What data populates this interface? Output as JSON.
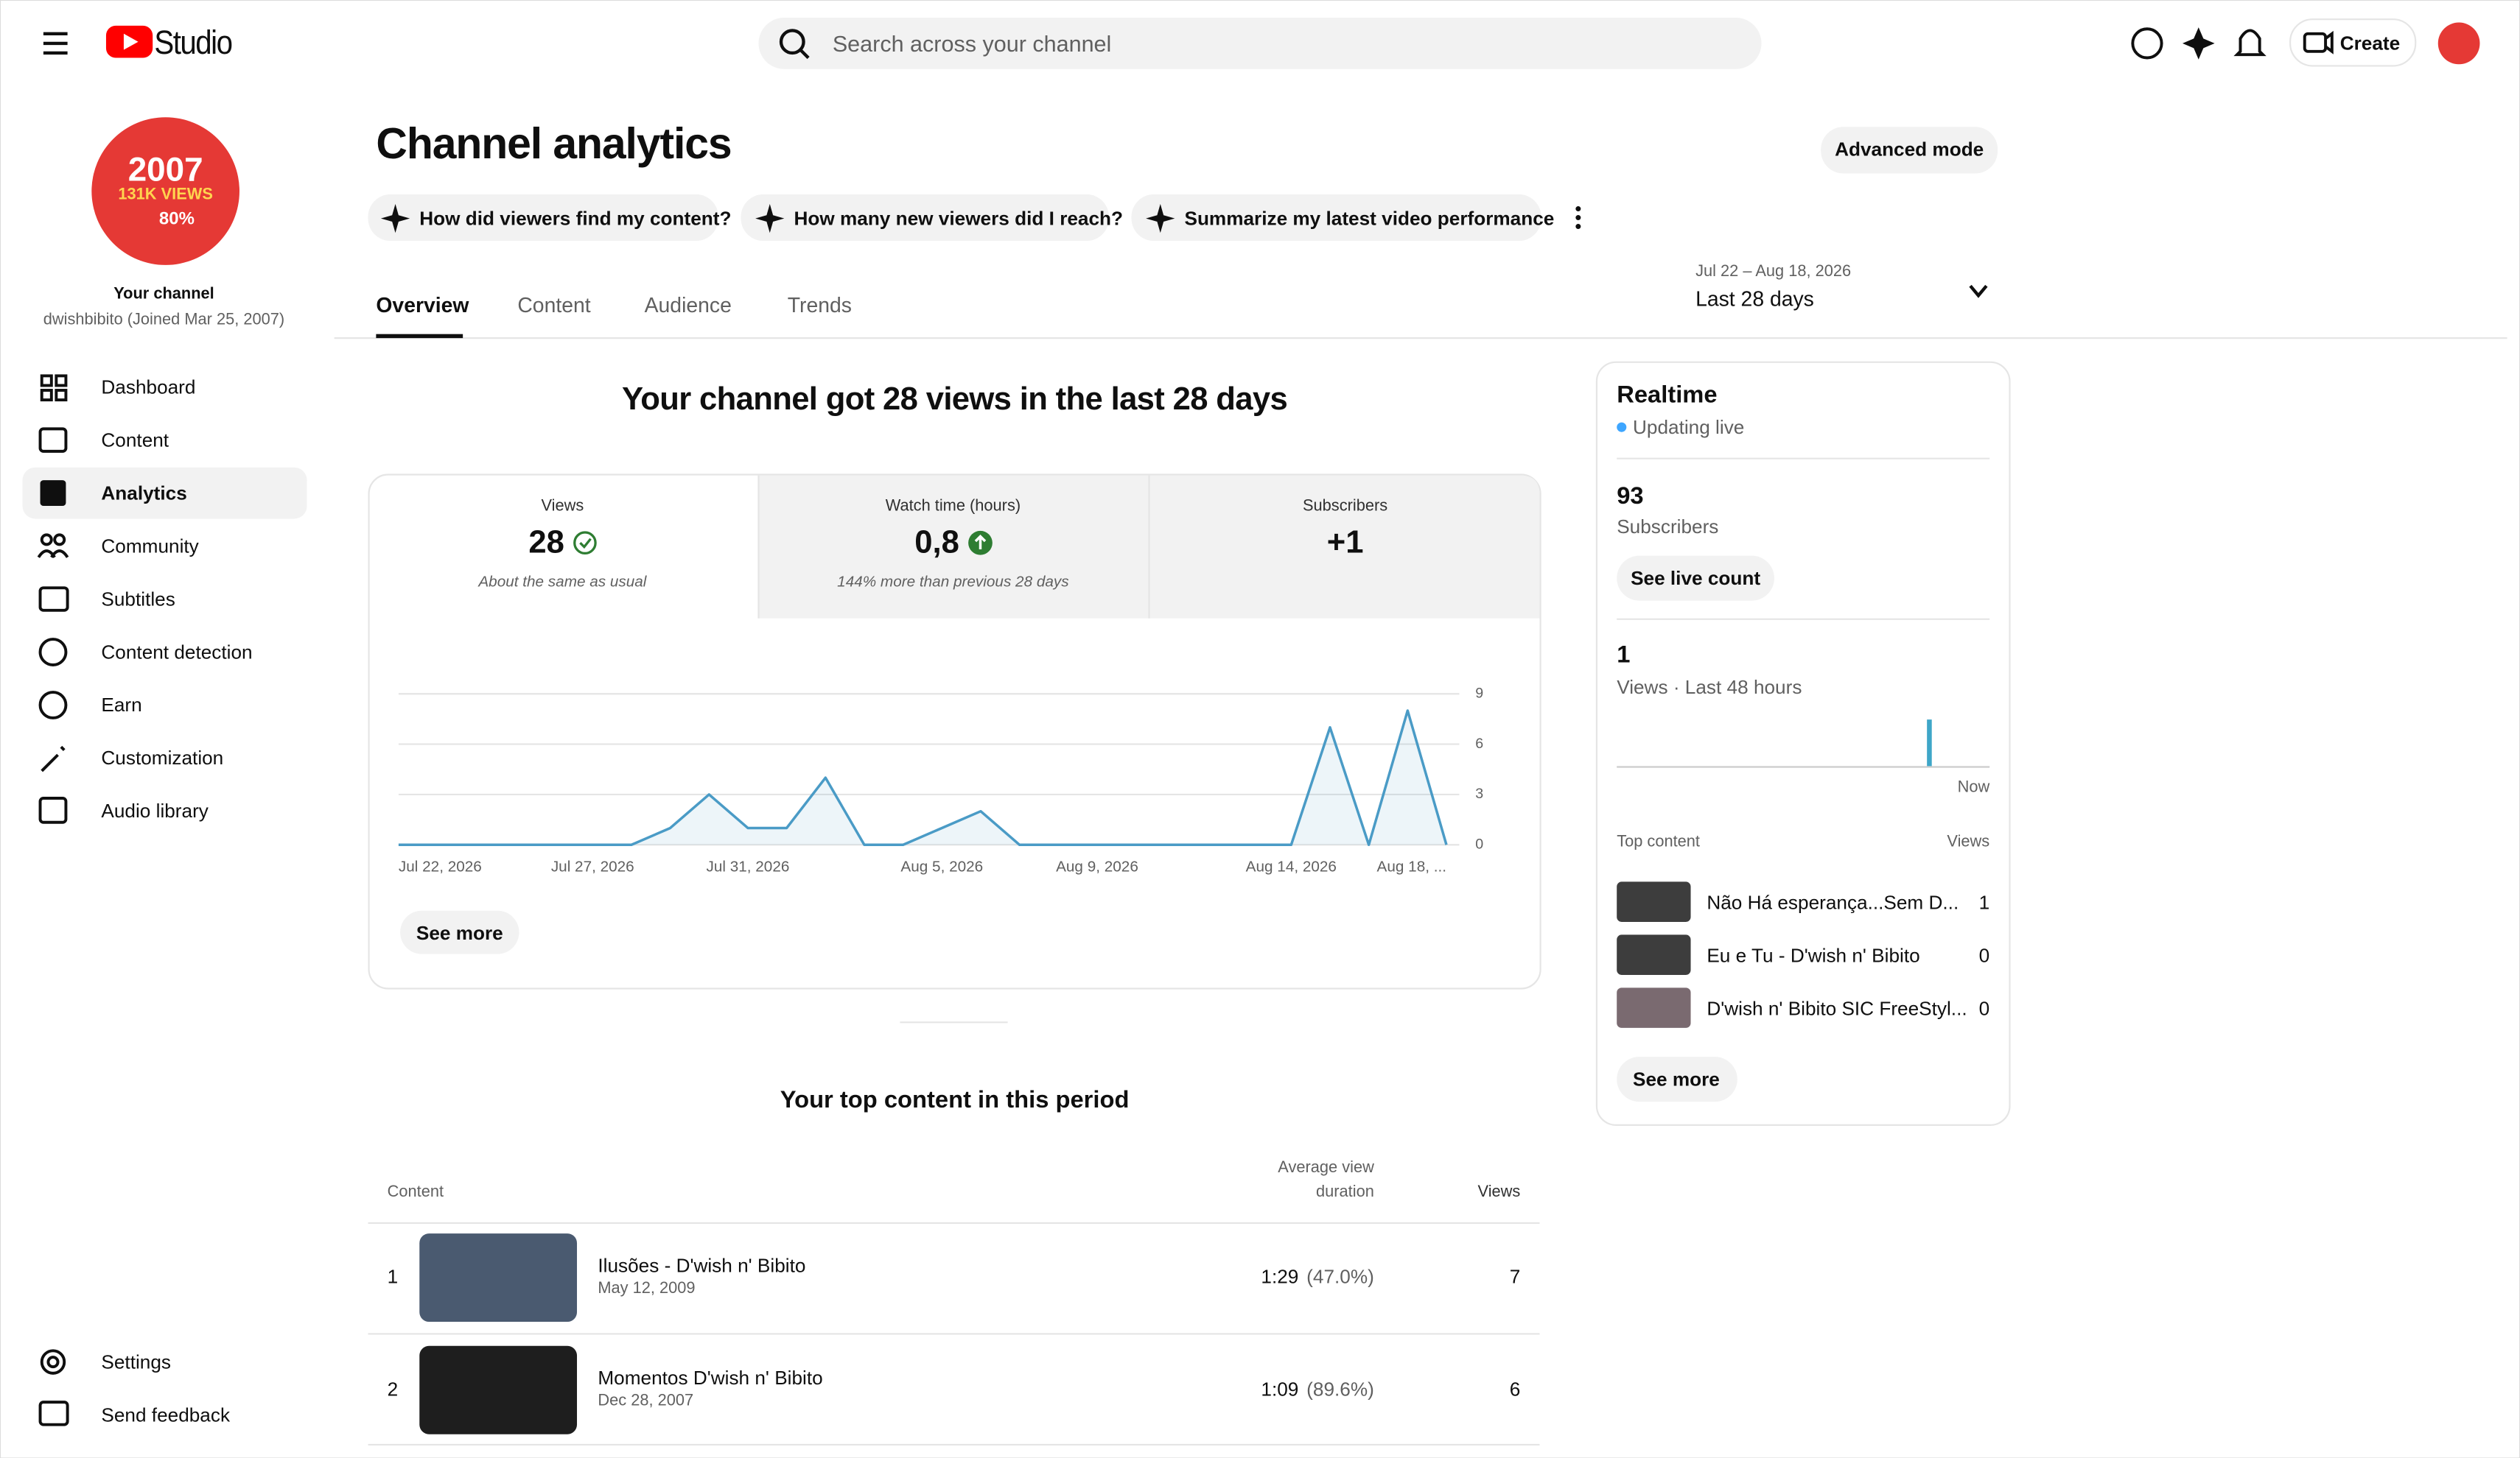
{
  "header": {
    "logo": "Studio",
    "search_placeholder": "Search across your channel",
    "create": "Create"
  },
  "sidebar": {
    "avatar": {
      "line1": "2007",
      "line2": "131K VIEWS",
      "line3": "80%"
    },
    "channel_label": "Your channel",
    "channel_info": "dwishbibito (Joined Mar 25, 2007)",
    "nav": [
      "Dashboard",
      "Content",
      "Analytics",
      "Community",
      "Subtitles",
      "Content detection",
      "Earn",
      "Customization",
      "Audio library"
    ],
    "bottom": [
      "Settings",
      "Send feedback"
    ]
  },
  "main": {
    "title": "Channel analytics",
    "advanced": "Advanced mode",
    "prompts": [
      "How did viewers find my content?",
      "How many new viewers did I reach?",
      "Summarize my latest video performance"
    ],
    "tabs": [
      "Overview",
      "Content",
      "Audience",
      "Trends"
    ],
    "date_range": "Jul 22 – Aug 18, 2026",
    "period": "Last 28 days",
    "headline": "Your channel got 28 views in the last 28 days",
    "metrics": [
      {
        "label": "Views",
        "value": "28",
        "note": "About the same as usual"
      },
      {
        "label": "Watch time (hours)",
        "value": "0,8",
        "note": "144% more than previous 28 days"
      },
      {
        "label": "Subscribers",
        "value": "+1"
      }
    ],
    "see_more": "See more",
    "top_title": "Your top content in this period",
    "table": {
      "headers": [
        "Content",
        "Average view",
        "duration",
        "Views"
      ],
      "rows": [
        {
          "rank": "1",
          "title": "Ilusões - D'wish n' Bibito",
          "date": "May 12, 2009",
          "duration": "1:29",
          "percent": "(47.0%)",
          "views": "7"
        },
        {
          "rank": "2",
          "title": "Momentos D'wish n' Bibito",
          "date": "Dec 28, 2007",
          "duration": "1:09",
          "percent": "(89.6%)",
          "views": "6"
        }
      ]
    }
  },
  "realtime": {
    "title": "Realtime",
    "status": "Updating live",
    "subscribers_count": "93",
    "subscribers_label": "Subscribers",
    "live_button": "See live count",
    "views_count": "1",
    "views_label": "Views · Last 48 hours",
    "now_label": "Now",
    "top_content_label": "Top content",
    "views_header": "Views",
    "items": [
      {
        "title": "Não Há esperança...Sem D...",
        "views": "1"
      },
      {
        "title": "Eu e Tu - D'wish n' Bibito",
        "views": "0"
      },
      {
        "title": "D'wish n' Bibito SIC FreeStyl...",
        "views": "0"
      }
    ],
    "see_more": "See more"
  },
  "chart_data": {
    "type": "line",
    "color": "#4a9bc6",
    "grid": true,
    "ylim": [
      0,
      9
    ],
    "yticks": [
      0,
      3,
      6,
      9
    ],
    "categories": [
      "Jul 22, 2026",
      null,
      null,
      null,
      null,
      "Jul 27, 2026",
      null,
      null,
      null,
      "Jul 31, 2026",
      null,
      null,
      null,
      null,
      "Aug 5, 2026",
      null,
      null,
      null,
      "Aug 9, 2026",
      null,
      null,
      null,
      null,
      "Aug 14, 2026",
      null,
      null,
      null,
      "Aug 18, ..."
    ],
    "values": [
      0,
      0,
      0,
      0,
      0,
      0,
      0,
      1,
      3,
      1,
      1,
      4,
      0,
      0,
      1,
      2,
      0,
      0,
      0,
      0,
      0,
      0,
      0,
      0,
      7,
      0,
      8,
      0
    ]
  }
}
